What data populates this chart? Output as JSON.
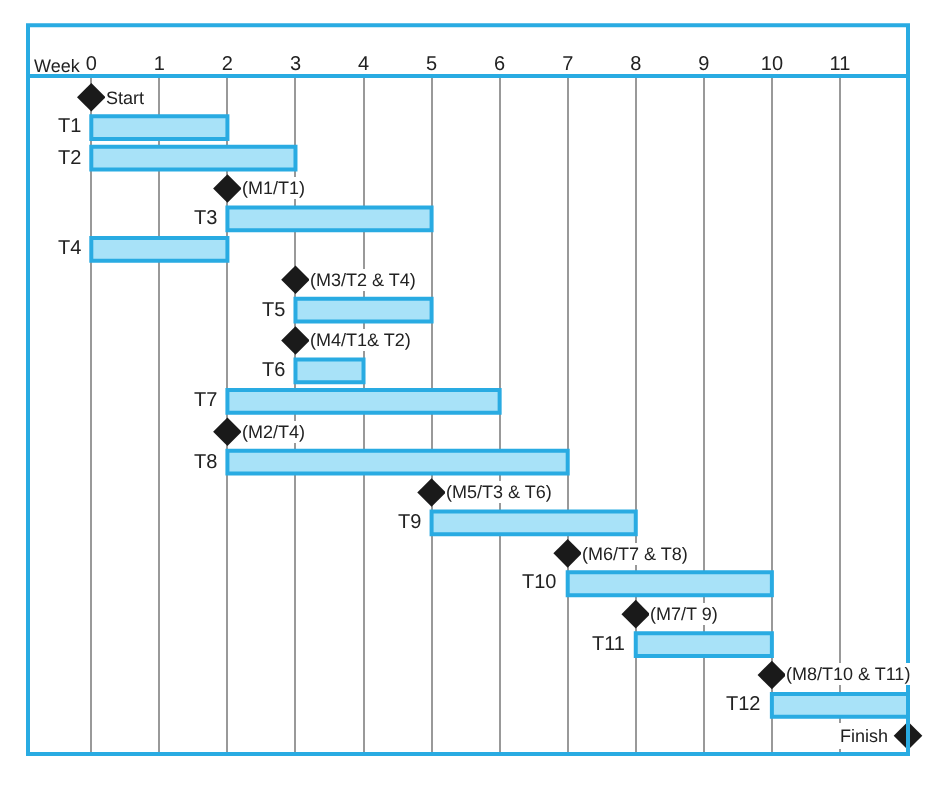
{
  "chart_data": {
    "type": "bar",
    "orientation": "horizontal",
    "xlabel": "Week",
    "categories": [
      "Start",
      "T1",
      "T2",
      "(M1/T1)",
      "T3",
      "T4",
      "(M3/T2 & T4)",
      "T5",
      "(M4/T1& T2)",
      "T6",
      "T7",
      "(M2/T4)",
      "T8",
      "(M5/T3 & T6)",
      "T9",
      "(M6/T7 & T8)",
      "T10",
      "(M7/T 9)",
      "T11",
      "(M8/T10 & T11)",
      "T12",
      "Finish"
    ],
    "series": [
      {
        "color": "#a8e2f8",
        "base": [
          null,
          0,
          0,
          null,
          2,
          0,
          null,
          3,
          null,
          3,
          2,
          null,
          2,
          null,
          5,
          null,
          7,
          null,
          8,
          null,
          10,
          null
        ],
        "values": [
          null,
          2,
          3,
          null,
          3,
          2,
          null,
          2,
          null,
          1,
          4,
          null,
          5,
          null,
          3,
          null,
          3,
          null,
          2,
          null,
          2,
          null
        ]
      },
      {
        "type": "scatter",
        "color": "#1a1a1a",
        "marker": "diamond",
        "values": [
          0,
          null,
          null,
          2,
          null,
          null,
          3,
          null,
          3,
          null,
          null,
          2,
          null,
          5,
          null,
          7,
          null,
          8,
          null,
          10,
          null,
          12
        ]
      }
    ],
    "xlim": [
      -0.93,
      12
    ],
    "xticks": [
      0,
      1,
      2,
      3,
      4,
      5,
      6,
      7,
      8,
      9,
      10,
      11
    ],
    "grid": "x"
  }
}
